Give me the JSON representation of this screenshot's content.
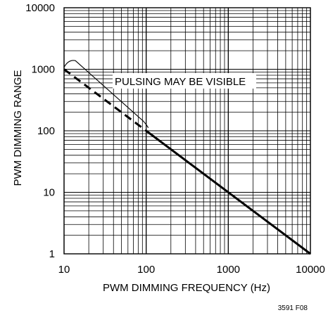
{
  "chart_data": {
    "type": "line",
    "title": "",
    "xlabel": "PWM DIMMING FREQUENCY (Hz)",
    "ylabel": "PWM DIMMING RANGE",
    "xscale": "log",
    "yscale": "log",
    "xlim": [
      10,
      10000
    ],
    "ylim": [
      1,
      10000
    ],
    "grid": true,
    "x_ticks": [
      "10",
      "100",
      "1000",
      "10000"
    ],
    "y_ticks": [
      "1",
      "10",
      "100",
      "1000",
      "10000"
    ],
    "series": [
      {
        "style": "dashed",
        "x": [
          10,
          100
        ],
        "y": [
          1000,
          100
        ]
      },
      {
        "style": "solid",
        "x": [
          100,
          10000
        ],
        "y": [
          100,
          1
        ]
      }
    ],
    "annotation": "PULSING MAY BE VISIBLE",
    "bracket": {
      "x": [
        10,
        100
      ],
      "y_start": 1450,
      "y_end": 140
    },
    "figure_id": "3591 F08",
    "colors": {
      "line": "#000000",
      "grid": "#000000",
      "background": "#ffffff"
    }
  }
}
